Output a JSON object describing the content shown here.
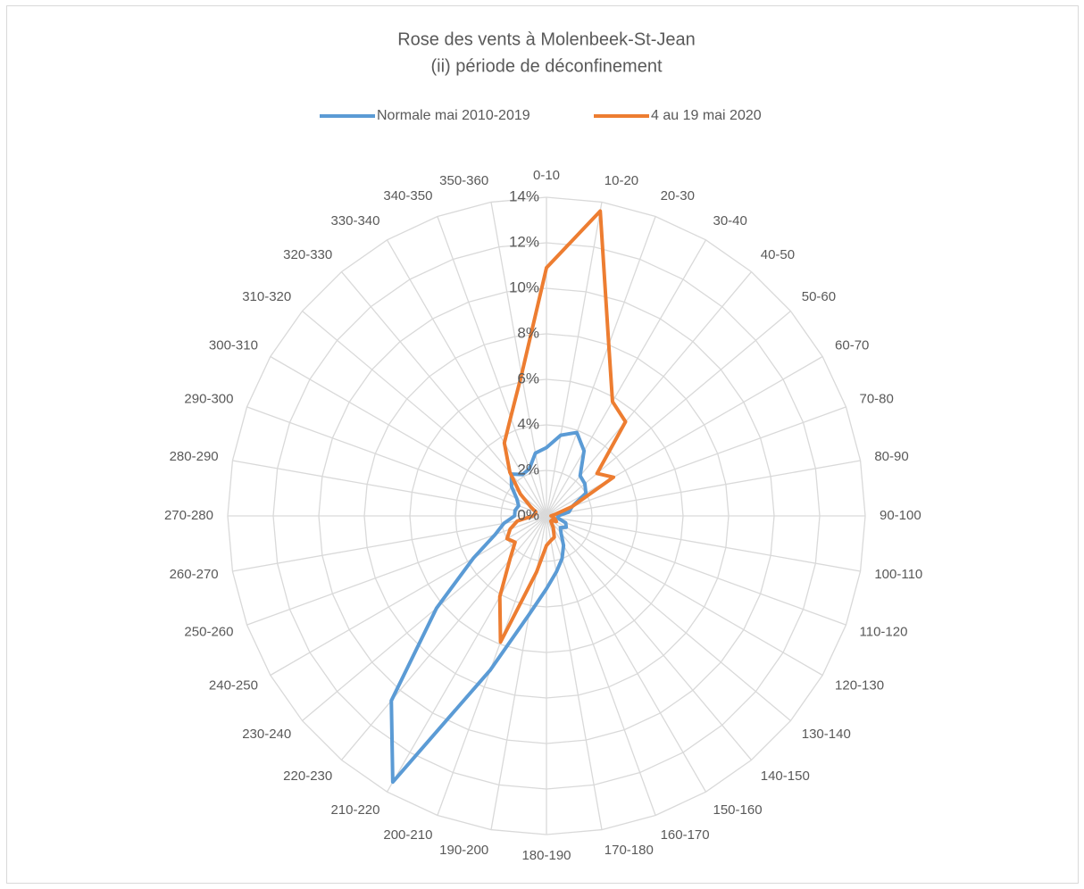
{
  "chart_data": {
    "type": "radar",
    "title": "Rose des vents à Molenbeek-St-Jean",
    "subtitle": "(ii) période de déconfinement",
    "categories": [
      "0-10",
      "10-20",
      "20-30",
      "30-40",
      "40-50",
      "50-60",
      "60-70",
      "70-80",
      "80-90",
      "90-100",
      "100-110",
      "110-120",
      "120-130",
      "130-140",
      "140-150",
      "150-160",
      "160-170",
      "170-180",
      "180-190",
      "190-200",
      "200-210",
      "210-220",
      "220-230",
      "230-240",
      "240-250",
      "250-260",
      "260-270",
      "270-280",
      "280-290",
      "290-300",
      "300-310",
      "310-320",
      "320-330",
      "330-340",
      "340-350",
      "350-360"
    ],
    "series": [
      {
        "name": "Normale mai 2010-2019",
        "color": "#5b9bd5",
        "values": [
          3.0,
          3.6,
          3.9,
          3.3,
          2.3,
          2.2,
          2.0,
          1.2,
          1.0,
          0.5,
          0.5,
          0.9,
          1.0,
          0.8,
          1.0,
          1.5,
          2.0,
          2.5,
          3.2,
          4.4,
          7.2,
          13.5,
          10.6,
          6.3,
          3.7,
          2.4,
          1.9,
          1.4,
          1.4,
          1.3,
          1.5,
          2.0,
          2.4,
          2.1,
          2.2,
          2.8
        ]
      },
      {
        "name": "4 au 19 mai 2020",
        "color": "#ed7d31",
        "values": [
          10.9,
          13.6,
          8.0,
          5.8,
          5.4,
          2.9,
          3.4,
          1.2,
          0.4,
          0.2,
          0.3,
          0.4,
          0.5,
          0.3,
          0.3,
          0.6,
          1.0,
          1.1,
          1.3,
          2.5,
          5.9,
          4.1,
          2.5,
          1.8,
          2.0,
          1.7,
          1.3,
          0.6,
          0.5,
          0.5,
          0.8,
          1.5,
          2.5,
          3.7,
          4.6,
          6.3
        ]
      }
    ],
    "ylim": [
      0,
      14
    ],
    "yticks": [
      {
        "value": 0,
        "label": "0%"
      },
      {
        "value": 2,
        "label": "2%"
      },
      {
        "value": 4,
        "label": "4%"
      },
      {
        "value": 6,
        "label": "6%"
      },
      {
        "value": 8,
        "label": "8%"
      },
      {
        "value": 10,
        "label": "10%"
      },
      {
        "value": 12,
        "label": "12%"
      },
      {
        "value": 14,
        "label": "14%"
      }
    ],
    "grid": true,
    "legend": "top"
  }
}
